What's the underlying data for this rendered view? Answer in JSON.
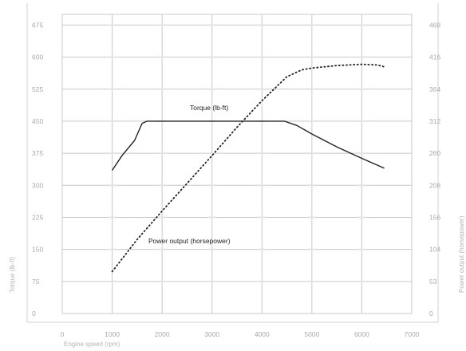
{
  "chart_data": {
    "type": "line",
    "title": "",
    "xlabel": "Engine speed (rpm)",
    "ylabel_left": "Torque (lb-ft)",
    "ylabel_right": "Power output (horsepower)",
    "x_ticks": [
      0,
      1000,
      2000,
      3000,
      4000,
      5000,
      6000,
      7000
    ],
    "y_left_ticks": [
      0,
      75,
      150,
      225,
      300,
      375,
      450,
      525,
      600,
      675
    ],
    "y_right_ticks": [
      0,
      53,
      104,
      156,
      208,
      260,
      312,
      364,
      416,
      468
    ],
    "xlim": [
      0,
      7000
    ],
    "ylim_left": [
      0,
      700
    ],
    "ylim_right": [
      0,
      485
    ],
    "grid": true,
    "legend": "none",
    "series": [
      {
        "name": "Torque (lb-ft)",
        "axis": "left",
        "style": "solid",
        "color": "#222222",
        "x": [
          1000,
          1200,
          1450,
          1600,
          1700,
          2000,
          3000,
          4000,
          4450,
          4700,
          5000,
          5500,
          6000,
          6450
        ],
        "y": [
          335,
          370,
          405,
          445,
          450,
          450,
          450,
          450,
          450,
          440,
          420,
          390,
          363,
          340
        ]
      },
      {
        "name": "Power output (horsepower)",
        "axis": "right",
        "style": "dotted",
        "color": "#222222",
        "x": [
          1000,
          1500,
          2000,
          2500,
          3000,
          3500,
          4000,
          4500,
          4800,
          5000,
          5500,
          6000,
          6300,
          6450
        ],
        "y": [
          68,
          120,
          166,
          211,
          256,
          302,
          345,
          384,
          395,
          398,
          402,
          404,
          403,
          400
        ]
      }
    ]
  },
  "colors": {
    "grid": "#c8c8c8",
    "frame": "#d2d2d2",
    "text": "#a9a9a9",
    "line": "#222222"
  }
}
